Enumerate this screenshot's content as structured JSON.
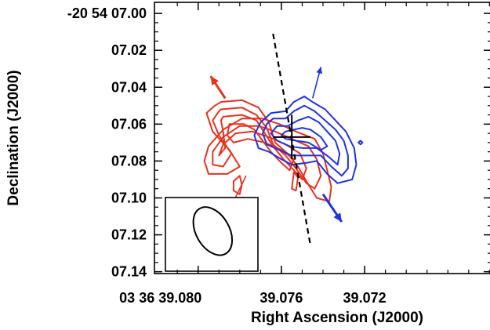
{
  "chart_data": {
    "type": "contour",
    "xlabel": "Right Ascension (J2000)",
    "ylabel": "Declination (J2000)",
    "x_ticks": [
      {
        "value": 39.08,
        "label": "03 36 39.080"
      },
      {
        "value": 39.076,
        "label": "39.076"
      },
      {
        "value": 39.072,
        "label": "39.072"
      }
    ],
    "y_ticks": [
      {
        "value": 7.0,
        "label": "-20 54 07.00"
      },
      {
        "value": 7.02,
        "label": "07.02"
      },
      {
        "value": 7.04,
        "label": "07.04"
      },
      {
        "value": 7.06,
        "label": "07.06"
      },
      {
        "value": 7.08,
        "label": "07.08"
      },
      {
        "value": 7.1,
        "label": "07.10"
      },
      {
        "value": 7.12,
        "label": "07.12"
      },
      {
        "value": 7.14,
        "label": "07.14"
      }
    ],
    "xlim": [
      39.0821,
      39.0659
    ],
    "ylim": [
      7.141,
      6.994
    ],
    "grid": false,
    "series": [
      {
        "color": "#e8321e",
        "contours": [
          [
            [
              39.0789,
              7.048
            ],
            [
              39.0779,
              7.047
            ],
            [
              39.0771,
              7.051
            ],
            [
              39.0766,
              7.059
            ],
            [
              39.0763,
              7.07
            ],
            [
              39.0757,
              7.076
            ],
            [
              39.0752,
              7.083
            ],
            [
              39.0748,
              7.091
            ],
            [
              39.0743,
              7.1
            ],
            [
              39.0737,
              7.102
            ],
            [
              39.0736,
              7.094
            ],
            [
              39.0738,
              7.085
            ],
            [
              39.074,
              7.076
            ],
            [
              39.0744,
              7.068
            ],
            [
              39.0753,
              7.064
            ],
            [
              39.0761,
              7.06
            ],
            [
              39.0769,
              7.057
            ],
            [
              39.0779,
              7.057
            ],
            [
              39.0788,
              7.063
            ],
            [
              39.0795,
              7.072
            ],
            [
              39.0797,
              7.08
            ],
            [
              39.0795,
              7.087
            ],
            [
              39.0786,
              7.087
            ],
            [
              39.078,
              7.083
            ],
            [
              39.0785,
              7.074
            ],
            [
              39.0793,
              7.064
            ],
            [
              39.0796,
              7.054
            ],
            [
              39.0792,
              7.05
            ],
            [
              39.0789,
              7.048
            ]
          ],
          [
            [
              39.0789,
              7.052
            ],
            [
              39.0779,
              7.051
            ],
            [
              39.0772,
              7.055
            ],
            [
              39.0767,
              7.062
            ],
            [
              39.0764,
              7.071
            ],
            [
              39.0758,
              7.077
            ],
            [
              39.0753,
              7.084
            ],
            [
              39.0748,
              7.092
            ],
            [
              39.0744,
              7.095
            ],
            [
              39.0741,
              7.088
            ],
            [
              39.0743,
              7.079
            ],
            [
              39.0747,
              7.072
            ],
            [
              39.0755,
              7.068
            ],
            [
              39.0763,
              7.064
            ],
            [
              39.0771,
              7.061
            ],
            [
              39.078,
              7.061
            ],
            [
              39.0788,
              7.067
            ],
            [
              39.0793,
              7.075
            ],
            [
              39.0793,
              7.082
            ],
            [
              39.0788,
              7.083
            ],
            [
              39.0784,
              7.076
            ],
            [
              39.079,
              7.066
            ],
            [
              39.0793,
              7.058
            ],
            [
              39.079,
              7.053
            ],
            [
              39.0789,
              7.052
            ]
          ],
          [
            [
              39.0788,
              7.056
            ],
            [
              39.0779,
              7.055
            ],
            [
              39.0772,
              7.058
            ],
            [
              39.0768,
              7.065
            ],
            [
              39.0764,
              7.072
            ],
            [
              39.0759,
              7.079
            ],
            [
              39.0754,
              7.085
            ],
            [
              39.075,
              7.09
            ],
            [
              39.0748,
              7.084
            ],
            [
              39.0751,
              7.076
            ],
            [
              39.0758,
              7.071
            ],
            [
              39.0766,
              7.067
            ],
            [
              39.0774,
              7.064
            ],
            [
              39.0782,
              7.065
            ],
            [
              39.0788,
              7.071
            ],
            [
              39.079,
              7.077
            ],
            [
              39.0787,
              7.073
            ],
            [
              39.0788,
              7.064
            ],
            [
              39.0789,
              7.058
            ],
            [
              39.0788,
              7.056
            ]
          ],
          [
            [
              39.0785,
              7.06
            ],
            [
              39.0778,
              7.06
            ],
            [
              39.0773,
              7.063
            ],
            [
              39.0769,
              7.069
            ],
            [
              39.0765,
              7.075
            ],
            [
              39.076,
              7.081
            ],
            [
              39.0756,
              7.085
            ],
            [
              39.0754,
              7.079
            ],
            [
              39.076,
              7.074
            ],
            [
              39.0768,
              7.07
            ],
            [
              39.0776,
              7.068
            ],
            [
              39.0783,
              7.07
            ],
            [
              39.0786,
              7.066
            ],
            [
              39.0785,
              7.06
            ]
          ],
          [
            [
              39.0783,
              7.091
            ],
            [
              39.078,
              7.088
            ],
            [
              39.0779,
              7.093
            ],
            [
              39.078,
              7.098
            ],
            [
              39.0783,
              7.096
            ],
            [
              39.0783,
              7.091
            ]
          ],
          [
            [
              39.0789,
              7.101
            ],
            [
              39.0787,
              7.104
            ],
            [
              39.0787,
              7.11
            ],
            [
              39.079,
              7.11
            ],
            [
              39.079,
              7.104
            ],
            [
              39.0789,
              7.101
            ]
          ],
          [
            [
              39.0754,
              7.086
            ],
            [
              39.0752,
              7.089
            ],
            [
              39.0753,
              7.096
            ],
            [
              39.0755,
              7.095
            ],
            [
              39.0754,
              7.086
            ]
          ]
        ]
      },
      {
        "color": "#1e32e6",
        "contours": [
          [
            [
              39.0765,
              7.054
            ],
            [
              39.0758,
              7.053
            ],
            [
              39.0754,
              7.048
            ],
            [
              39.0749,
              7.045
            ],
            [
              39.0745,
              7.048
            ],
            [
              39.0739,
              7.052
            ],
            [
              39.0734,
              7.058
            ],
            [
              39.0729,
              7.064
            ],
            [
              39.0725,
              7.073
            ],
            [
              39.0724,
              7.082
            ],
            [
              39.0726,
              7.09
            ],
            [
              39.0733,
              7.092
            ],
            [
              39.0738,
              7.087
            ],
            [
              39.0743,
              7.08
            ],
            [
              39.0748,
              7.081
            ],
            [
              39.0755,
              7.082
            ],
            [
              39.076,
              7.079
            ],
            [
              39.0766,
              7.075
            ],
            [
              39.0771,
              7.073
            ],
            [
              39.0773,
              7.066
            ],
            [
              39.077,
              7.059
            ],
            [
              39.0765,
              7.054
            ]
          ],
          [
            [
              39.0764,
              7.057
            ],
            [
              39.0758,
              7.057
            ],
            [
              39.0754,
              7.053
            ],
            [
              39.0749,
              7.05
            ],
            [
              39.0744,
              7.053
            ],
            [
              39.0739,
              7.058
            ],
            [
              39.0734,
              7.063
            ],
            [
              39.073,
              7.069
            ],
            [
              39.0728,
              7.077
            ],
            [
              39.0728,
              7.084
            ],
            [
              39.0731,
              7.088
            ],
            [
              39.0736,
              7.083
            ],
            [
              39.0741,
              7.077
            ],
            [
              39.0748,
              7.077
            ],
            [
              39.0755,
              7.077
            ],
            [
              39.0761,
              7.074
            ],
            [
              39.0767,
              7.071
            ],
            [
              39.0769,
              7.065
            ],
            [
              39.0767,
              7.06
            ],
            [
              39.0764,
              7.057
            ]
          ],
          [
            [
              39.0762,
              7.061
            ],
            [
              39.0757,
              7.061
            ],
            [
              39.0752,
              7.058
            ],
            [
              39.0747,
              7.056
            ],
            [
              39.0742,
              7.059
            ],
            [
              39.0738,
              7.064
            ],
            [
              39.0734,
              7.069
            ],
            [
              39.0732,
              7.076
            ],
            [
              39.0733,
              7.082
            ],
            [
              39.0737,
              7.078
            ],
            [
              39.0743,
              7.073
            ],
            [
              39.075,
              7.073
            ],
            [
              39.0756,
              7.072
            ],
            [
              39.0762,
              7.069
            ],
            [
              39.0765,
              7.065
            ],
            [
              39.0762,
              7.061
            ]
          ],
          [
            [
              39.0758,
              7.064
            ],
            [
              39.0754,
              7.063
            ],
            [
              39.075,
              7.062
            ],
            [
              39.0746,
              7.063
            ],
            [
              39.0741,
              7.067
            ],
            [
              39.0738,
              7.072
            ],
            [
              39.0741,
              7.074
            ],
            [
              39.0747,
              7.07
            ],
            [
              39.0753,
              7.069
            ],
            [
              39.0758,
              7.068
            ],
            [
              39.076,
              7.066
            ],
            [
              39.0758,
              7.064
            ]
          ],
          [
            [
              39.0722,
              7.069
            ],
            [
              39.0721,
              7.07
            ],
            [
              39.0722,
              7.071
            ],
            [
              39.0723,
              7.07
            ],
            [
              39.0722,
              7.069
            ]
          ]
        ]
      }
    ],
    "jet_axis": [
      [
        39.0764,
        7.011
      ],
      [
        39.0746,
        7.126
      ]
    ],
    "outflow_arrows": [
      {
        "color": "#e8321e",
        "from": [
          39.0787,
          7.046
        ],
        "to": [
          39.0794,
          7.034
        ]
      },
      {
        "color": "#1e32e6",
        "from": [
          39.0745,
          7.046
        ],
        "to": [
          39.0741,
          7.029
        ]
      },
      {
        "color": "#1e32e6",
        "from": [
          39.074,
          7.098
        ],
        "to": [
          39.0731,
          7.113
        ]
      },
      {
        "color": "#e8321e",
        "from": [
          39.0777,
          7.088
        ],
        "to": [
          39.0786,
          7.109
        ]
      }
    ],
    "center_cross": {
      "position": [
        39.0755,
        7.067
      ],
      "dx": 0.0009,
      "dy": 0.012
    },
    "beam": {
      "center": [
        39.0793,
        7.118
      ],
      "major_axis": 0.018,
      "minor_axis": 0.0025,
      "angle_deg": -30
    }
  }
}
